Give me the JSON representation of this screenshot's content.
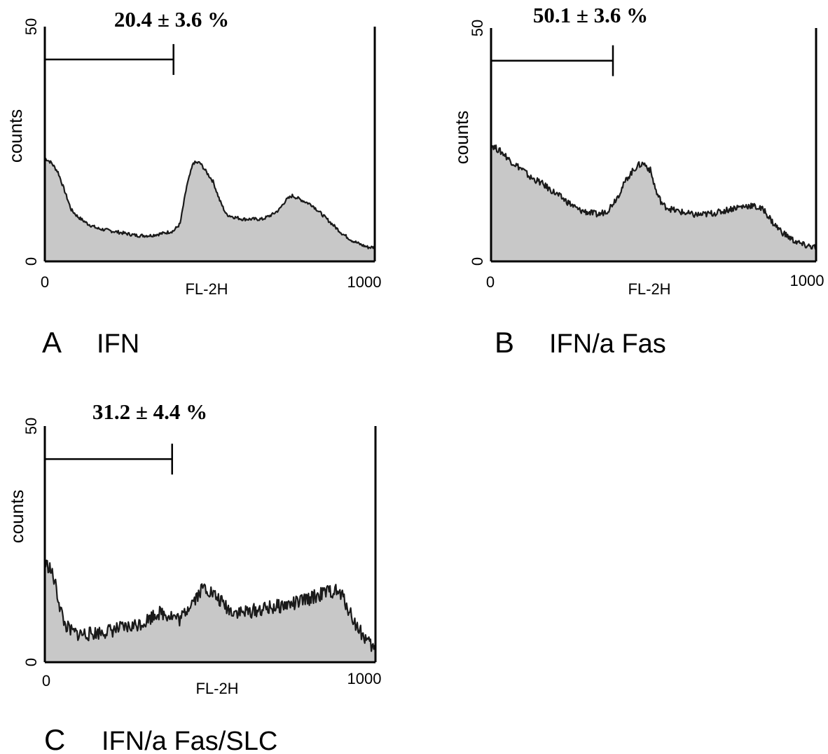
{
  "chart_data": [
    {
      "type": "area",
      "panel_letter": "A",
      "panel_label": "IFN",
      "annotation": "20.4 ± 3.6 %",
      "xlabel": "FL-2H",
      "ylabel": "counts",
      "xlim": [
        0,
        1000
      ],
      "ylim": [
        0,
        50
      ],
      "x_ticks": [
        "0",
        "1000"
      ],
      "y_ticks": [
        "0",
        "50"
      ],
      "gate": [
        0,
        390
      ],
      "gate_y": 43,
      "fill_color": "#c8c8c8",
      "line_color": "#1a1a1a",
      "noise": 0.35,
      "x": [
        0,
        20,
        40,
        60,
        80,
        100,
        130,
        160,
        200,
        240,
        280,
        320,
        360,
        390,
        410,
        430,
        450,
        470,
        490,
        510,
        530,
        550,
        570,
        600,
        630,
        660,
        690,
        710,
        730,
        750,
        780,
        810,
        840,
        870,
        900,
        930,
        960,
        980,
        1000
      ],
      "y": [
        22,
        21,
        19,
        15,
        11,
        9.5,
        8,
        7,
        6.5,
        6,
        5.5,
        5.5,
        6,
        6.5,
        8,
        16,
        21,
        21,
        19,
        17,
        13,
        10,
        9.5,
        9,
        9,
        9,
        10,
        11,
        13,
        14,
        13,
        12,
        10,
        8,
        6,
        4.5,
        3.5,
        3,
        3
      ]
    },
    {
      "type": "area",
      "panel_letter": "B",
      "panel_label": "IFN/a Fas",
      "annotation": "50.1 ± 3.6 %",
      "xlabel": "FL-2H",
      "ylabel": "counts",
      "xlim": [
        0,
        1000
      ],
      "ylim": [
        0,
        50
      ],
      "x_ticks": [
        "0",
        "1000"
      ],
      "y_ticks": [
        "0",
        "50"
      ],
      "gate": [
        0,
        375
      ],
      "gate_y": 43,
      "fill_color": "#c8c8c8",
      "line_color": "#1a1a1a",
      "noise": 0.7,
      "x": [
        0,
        20,
        40,
        60,
        80,
        100,
        120,
        150,
        180,
        210,
        240,
        270,
        300,
        330,
        360,
        390,
        420,
        450,
        470,
        490,
        510,
        530,
        560,
        590,
        620,
        650,
        700,
        750,
        800,
        840,
        870,
        900,
        930,
        960,
        1000
      ],
      "y": [
        25,
        24,
        23,
        21.5,
        20.5,
        19.5,
        18,
        17,
        15.5,
        14,
        12.5,
        11,
        10.5,
        10,
        11,
        14,
        18,
        20.5,
        21,
        19.5,
        14.5,
        12,
        11,
        10.5,
        10,
        10,
        10.5,
        11.5,
        12,
        11,
        8,
        6,
        4.5,
        3.5,
        3
      ]
    },
    {
      "type": "area",
      "panel_letter": "C",
      "panel_label": "IFN/a Fas/SLC",
      "annotation": "31.2 ± 4.4 %",
      "xlabel": "FL-2H",
      "ylabel": "counts",
      "xlim": [
        0,
        1000
      ],
      "ylim": [
        0,
        50
      ],
      "x_ticks": [
        "0",
        "1000"
      ],
      "y_ticks": [
        "0",
        "50"
      ],
      "gate": [
        0,
        385
      ],
      "gate_y": 43,
      "fill_color": "#c8c8c8",
      "line_color": "#1a1a1a",
      "noise": 1.5,
      "x": [
        0,
        15,
        30,
        45,
        60,
        80,
        100,
        140,
        180,
        220,
        260,
        300,
        340,
        380,
        410,
        440,
        460,
        480,
        500,
        530,
        560,
        600,
        640,
        680,
        720,
        760,
        800,
        840,
        860,
        880,
        900,
        920,
        940,
        960,
        980,
        1000
      ],
      "y": [
        21,
        20,
        17,
        12,
        8,
        6.5,
        6,
        6,
        6.5,
        7,
        7.5,
        8.5,
        10.5,
        10,
        9,
        12.5,
        14,
        16,
        15,
        13,
        11,
        10.5,
        11,
        11.5,
        12,
        12.5,
        13.5,
        14.5,
        15,
        15,
        14,
        11,
        8,
        6,
        4,
        2.5
      ]
    }
  ]
}
